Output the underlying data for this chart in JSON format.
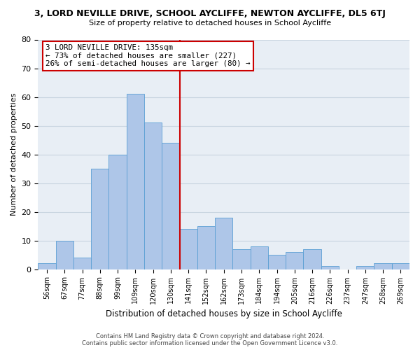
{
  "title": "3, LORD NEVILLE DRIVE, SCHOOL AYCLIFFE, NEWTON AYCLIFFE, DL5 6TJ",
  "subtitle": "Size of property relative to detached houses in School Aycliffe",
  "xlabel": "Distribution of detached houses by size in School Aycliffe",
  "ylabel": "Number of detached properties",
  "bin_labels": [
    "56sqm",
    "67sqm",
    "77sqm",
    "88sqm",
    "99sqm",
    "109sqm",
    "120sqm",
    "130sqm",
    "141sqm",
    "152sqm",
    "162sqm",
    "173sqm",
    "184sqm",
    "194sqm",
    "205sqm",
    "216sqm",
    "226sqm",
    "237sqm",
    "247sqm",
    "258sqm",
    "269sqm"
  ],
  "bar_heights": [
    2,
    10,
    4,
    35,
    40,
    61,
    51,
    44,
    14,
    15,
    18,
    7,
    8,
    5,
    6,
    7,
    1,
    0,
    1,
    2,
    2
  ],
  "bar_color": "#aec6e8",
  "bar_edge_color": "#5a9fd4",
  "annotation_title": "3 LORD NEVILLE DRIVE: 135sqm",
  "annotation_line1": "← 73% of detached houses are smaller (227)",
  "annotation_line2": "26% of semi-detached houses are larger (80) →",
  "annotation_box_color": "#ffffff",
  "annotation_box_edge_color": "#cc0000",
  "ref_line_color": "#cc0000",
  "ref_line_index": 7.5,
  "ylim": [
    0,
    80
  ],
  "yticks": [
    0,
    10,
    20,
    30,
    40,
    50,
    60,
    70,
    80
  ],
  "footer1": "Contains HM Land Registry data © Crown copyright and database right 2024.",
  "footer2": "Contains public sector information licensed under the Open Government Licence v3.0.",
  "bg_color": "#e8eef5",
  "grid_color": "#c8d4e0"
}
